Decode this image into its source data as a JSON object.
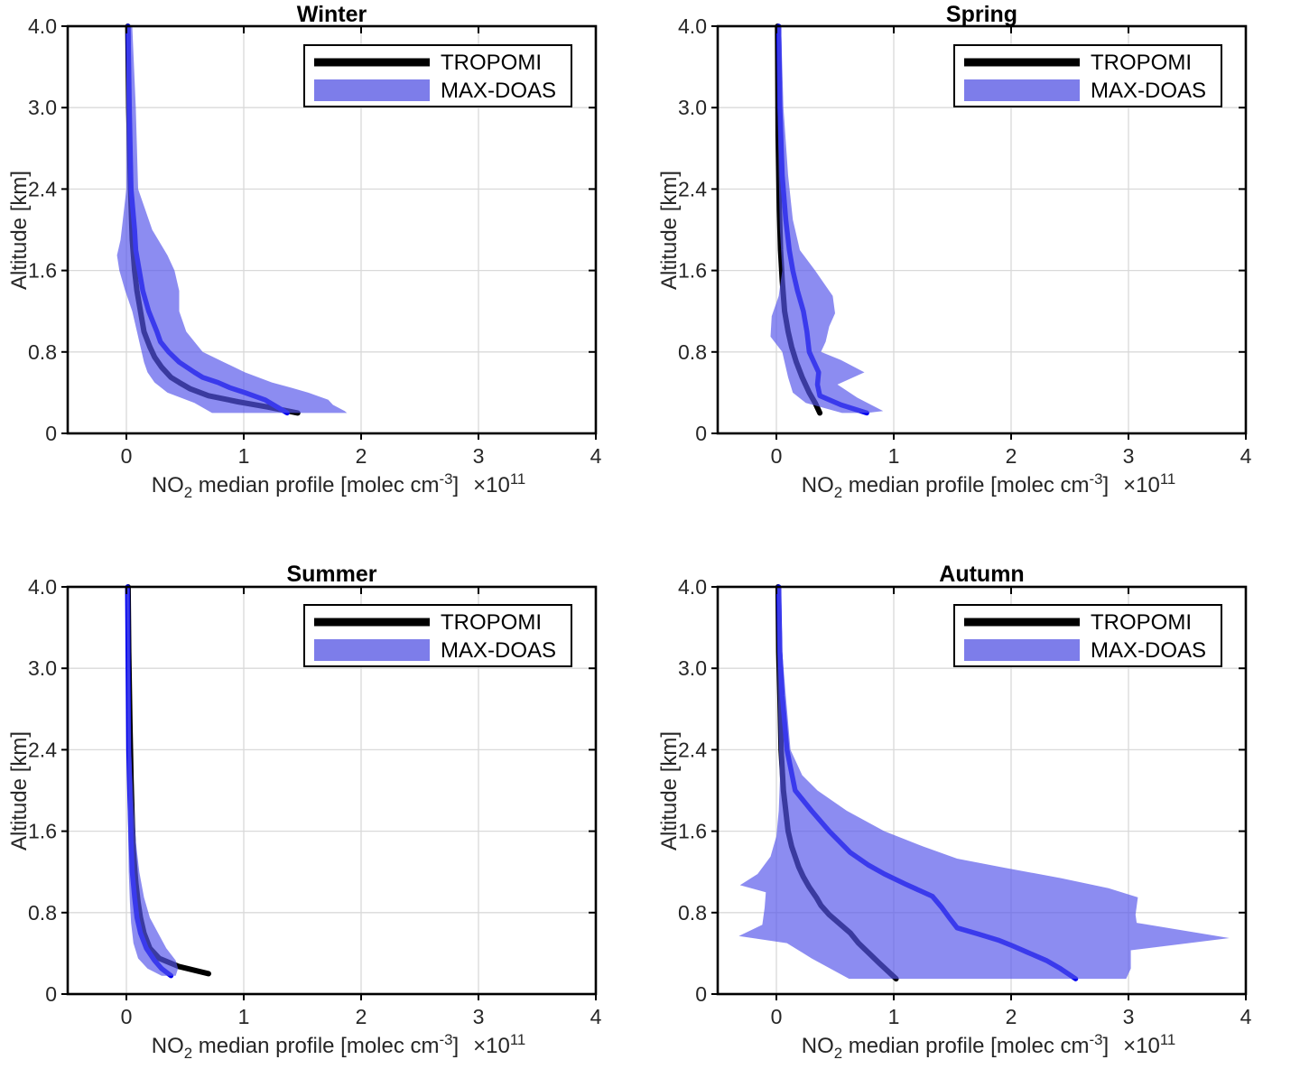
{
  "figure": {
    "background": "#ffffff"
  },
  "colors": {
    "tropomi_line": "#000000",
    "maxdoas_line": "#0000ee",
    "band_fill": "#5555eb",
    "band_opacity": 0.68,
    "legend_band": "#7d7dea",
    "grid": "#d9d9d9",
    "axis": "#000000",
    "tick_label": "#262626"
  },
  "axes": {
    "ylabel": "Altitude [km]",
    "xlabel_plain": "NO2 median profile [molec cm-3] x10^11",
    "xlabel": {
      "p1": "NO",
      "s1": "2",
      "p2": " median profile [molec cm",
      "s2": "-3",
      "p3": "]",
      "p4": "×10",
      "s3": "11"
    },
    "x_tick_values": [
      0,
      1,
      2,
      3,
      4
    ],
    "x_tick_labels": [
      "0",
      "1",
      "2",
      "3",
      "4"
    ],
    "x_range": [
      -0.5,
      4.0
    ],
    "y_tick_values": [
      0,
      0.8,
      1.6,
      2.4,
      3.0,
      4.0
    ],
    "y_tick_labels": [
      "0",
      "0.8",
      "1.6",
      "2.4",
      "3.0",
      "4.0"
    ],
    "grid": "on"
  },
  "legend": {
    "items": [
      {
        "label": "TROPOMI",
        "type": "line"
      },
      {
        "label": "MAX-DOAS",
        "type": "patch"
      }
    ],
    "position": "top-right"
  },
  "chart_data": [
    {
      "type": "line",
      "title": "Winter",
      "xlabel": "NO2 median profile [molec cm-3] x10^11",
      "ylabel": "Altitude [km]",
      "series_units": "values are [NO2 x1e11 molec cm-3, altitude km]",
      "tropomi": [
        [
          1.46,
          0.2
        ],
        [
          1.2,
          0.26
        ],
        [
          0.95,
          0.31
        ],
        [
          0.7,
          0.37
        ],
        [
          0.54,
          0.44
        ],
        [
          0.45,
          0.5
        ],
        [
          0.38,
          0.55
        ],
        [
          0.3,
          0.65
        ],
        [
          0.24,
          0.75
        ],
        [
          0.2,
          0.85
        ],
        [
          0.15,
          1.0
        ],
        [
          0.12,
          1.2
        ],
        [
          0.09,
          1.4
        ],
        [
          0.07,
          1.6
        ],
        [
          0.05,
          1.9
        ],
        [
          0.035,
          2.4
        ],
        [
          0.02,
          3.0
        ],
        [
          0.012,
          4.0
        ]
      ],
      "maxdoas_median": [
        [
          1.37,
          0.2
        ],
        [
          1.18,
          0.33
        ],
        [
          1.01,
          0.4
        ],
        [
          0.88,
          0.45
        ],
        [
          0.78,
          0.5
        ],
        [
          0.65,
          0.55
        ],
        [
          0.58,
          0.6
        ],
        [
          0.45,
          0.7
        ],
        [
          0.36,
          0.8
        ],
        [
          0.29,
          0.9
        ],
        [
          0.26,
          1.0
        ],
        [
          0.19,
          1.2
        ],
        [
          0.14,
          1.4
        ],
        [
          0.11,
          1.6
        ],
        [
          0.08,
          1.8
        ],
        [
          0.07,
          2.0
        ],
        [
          0.04,
          2.4
        ],
        [
          0.025,
          3.0
        ],
        [
          0.015,
          4.0
        ]
      ],
      "maxdoas_band": [
        [
          0.73,
          0.2
        ],
        [
          0.58,
          0.3
        ],
        [
          0.35,
          0.4
        ],
        [
          0.24,
          0.5
        ],
        [
          0.18,
          0.6
        ],
        [
          0.15,
          0.7
        ],
        [
          0.13,
          0.8
        ],
        [
          0.09,
          1.0
        ],
        [
          0.05,
          1.2
        ],
        [
          -0.01,
          1.4
        ],
        [
          -0.06,
          1.6
        ],
        [
          -0.08,
          1.75
        ],
        [
          -0.05,
          1.9
        ],
        [
          -0.03,
          2.1
        ],
        [
          0.0,
          2.4
        ],
        [
          0.0,
          3.0
        ],
        [
          0.0,
          4.0
        ],
        [
          0.05,
          4.0
        ],
        [
          0.08,
          3.0
        ],
        [
          0.1,
          2.4
        ],
        [
          0.22,
          2.0
        ],
        [
          0.35,
          1.75
        ],
        [
          0.41,
          1.6
        ],
        [
          0.45,
          1.4
        ],
        [
          0.45,
          1.2
        ],
        [
          0.51,
          1.0
        ],
        [
          0.65,
          0.8
        ],
        [
          0.83,
          0.7
        ],
        [
          1.01,
          0.6
        ],
        [
          1.24,
          0.5
        ],
        [
          1.4,
          0.45
        ],
        [
          1.55,
          0.4
        ],
        [
          1.72,
          0.33
        ],
        [
          1.76,
          0.28
        ],
        [
          1.86,
          0.22
        ],
        [
          1.88,
          0.2
        ]
      ]
    },
    {
      "type": "line",
      "title": "Spring",
      "xlabel": "NO2 median profile [molec cm-3] x10^11",
      "ylabel": "Altitude [km]",
      "series_units": "values are [NO2 x1e11 molec cm-3, altitude km]",
      "tropomi": [
        [
          0.37,
          0.2
        ],
        [
          0.33,
          0.3
        ],
        [
          0.28,
          0.4
        ],
        [
          0.22,
          0.55
        ],
        [
          0.17,
          0.7
        ],
        [
          0.13,
          0.85
        ],
        [
          0.1,
          1.0
        ],
        [
          0.07,
          1.2
        ],
        [
          0.05,
          1.5
        ],
        [
          0.035,
          1.8
        ],
        [
          0.025,
          2.2
        ],
        [
          0.015,
          2.8
        ],
        [
          0.01,
          4.0
        ]
      ],
      "maxdoas_median": [
        [
          0.77,
          0.2
        ],
        [
          0.55,
          0.28
        ],
        [
          0.37,
          0.37
        ],
        [
          0.35,
          0.48
        ],
        [
          0.36,
          0.6
        ],
        [
          0.32,
          0.7
        ],
        [
          0.28,
          0.8
        ],
        [
          0.26,
          1.0
        ],
        [
          0.23,
          1.2
        ],
        [
          0.18,
          1.4
        ],
        [
          0.14,
          1.6
        ],
        [
          0.11,
          1.8
        ],
        [
          0.08,
          2.1
        ],
        [
          0.05,
          2.5
        ],
        [
          0.03,
          3.0
        ],
        [
          0.02,
          4.0
        ]
      ],
      "maxdoas_band": [
        [
          0.56,
          0.2
        ],
        [
          0.25,
          0.3
        ],
        [
          0.14,
          0.4
        ],
        [
          0.1,
          0.55
        ],
        [
          0.07,
          0.7
        ],
        [
          0.05,
          0.8
        ],
        [
          -0.05,
          0.95
        ],
        [
          -0.04,
          1.15
        ],
        [
          0.02,
          1.35
        ],
        [
          0.05,
          1.6
        ],
        [
          0.03,
          2.0
        ],
        [
          0.02,
          2.5
        ],
        [
          0.01,
          3.0
        ],
        [
          0.005,
          4.0
        ],
        [
          0.04,
          4.0
        ],
        [
          0.06,
          3.0
        ],
        [
          0.1,
          2.5
        ],
        [
          0.14,
          2.1
        ],
        [
          0.2,
          1.8
        ],
        [
          0.33,
          1.6
        ],
        [
          0.42,
          1.45
        ],
        [
          0.48,
          1.35
        ],
        [
          0.5,
          1.18
        ],
        [
          0.45,
          1.05
        ],
        [
          0.42,
          0.9
        ],
        [
          0.38,
          0.8
        ],
        [
          0.55,
          0.72
        ],
        [
          0.75,
          0.6
        ],
        [
          0.52,
          0.48
        ],
        [
          0.69,
          0.35
        ],
        [
          0.91,
          0.22
        ],
        [
          0.77,
          0.2
        ]
      ]
    },
    {
      "type": "line",
      "title": "Summer",
      "xlabel": "NO2 median profile [molec cm-3] x10^11",
      "ylabel": "Altitude [km]",
      "series_units": "values are [NO2 x1e11 molec cm-3, altitude km]",
      "tropomi": [
        [
          0.7,
          0.2
        ],
        [
          0.45,
          0.27
        ],
        [
          0.28,
          0.35
        ],
        [
          0.2,
          0.45
        ],
        [
          0.15,
          0.6
        ],
        [
          0.12,
          0.75
        ],
        [
          0.1,
          0.9
        ],
        [
          0.08,
          1.1
        ],
        [
          0.06,
          1.4
        ],
        [
          0.05,
          1.7
        ],
        [
          0.04,
          2.1
        ],
        [
          0.03,
          2.6
        ],
        [
          0.02,
          3.2
        ],
        [
          0.015,
          4.0
        ]
      ],
      "maxdoas_median": [
        [
          0.38,
          0.18
        ],
        [
          0.3,
          0.25
        ],
        [
          0.24,
          0.33
        ],
        [
          0.17,
          0.45
        ],
        [
          0.12,
          0.6
        ],
        [
          0.09,
          0.75
        ],
        [
          0.07,
          0.95
        ],
        [
          0.05,
          1.2
        ],
        [
          0.04,
          1.5
        ],
        [
          0.03,
          1.9
        ],
        [
          0.02,
          2.4
        ],
        [
          0.015,
          3.0
        ],
        [
          0.01,
          4.0
        ]
      ],
      "maxdoas_band": [
        [
          0.3,
          0.18
        ],
        [
          0.18,
          0.25
        ],
        [
          0.1,
          0.35
        ],
        [
          0.06,
          0.5
        ],
        [
          0.04,
          0.7
        ],
        [
          0.03,
          0.9
        ],
        [
          0.02,
          1.2
        ],
        [
          0.015,
          1.6
        ],
        [
          0.01,
          2.2
        ],
        [
          0.005,
          3.0
        ],
        [
          0.0,
          4.0
        ],
        [
          0.025,
          4.0
        ],
        [
          0.03,
          3.0
        ],
        [
          0.04,
          2.4
        ],
        [
          0.06,
          1.9
        ],
        [
          0.08,
          1.5
        ],
        [
          0.11,
          1.2
        ],
        [
          0.15,
          0.95
        ],
        [
          0.2,
          0.75
        ],
        [
          0.27,
          0.6
        ],
        [
          0.34,
          0.45
        ],
        [
          0.42,
          0.33
        ],
        [
          0.44,
          0.25
        ],
        [
          0.42,
          0.18
        ]
      ]
    },
    {
      "type": "line",
      "title": "Autumn",
      "xlabel": "NO2 median profile [molec cm-3] x10^11",
      "ylabel": "Altitude [km]",
      "series_units": "values are [NO2 x1e11 molec cm-3, altitude km]",
      "tropomi": [
        [
          1.02,
          0.15
        ],
        [
          0.88,
          0.3
        ],
        [
          0.79,
          0.4
        ],
        [
          0.7,
          0.5
        ],
        [
          0.63,
          0.6
        ],
        [
          0.53,
          0.7
        ],
        [
          0.45,
          0.78
        ],
        [
          0.38,
          0.87
        ],
        [
          0.34,
          0.95
        ],
        [
          0.28,
          1.05
        ],
        [
          0.23,
          1.15
        ],
        [
          0.19,
          1.25
        ],
        [
          0.16,
          1.35
        ],
        [
          0.13,
          1.45
        ],
        [
          0.1,
          1.6
        ],
        [
          0.08,
          1.8
        ],
        [
          0.06,
          2.0
        ],
        [
          0.04,
          2.4
        ],
        [
          0.03,
          2.8
        ],
        [
          0.02,
          3.2
        ],
        [
          0.015,
          4.0
        ]
      ],
      "maxdoas_median": [
        [
          2.55,
          0.15
        ],
        [
          2.42,
          0.25
        ],
        [
          2.3,
          0.33
        ],
        [
          2.14,
          0.41
        ],
        [
          2.0,
          0.48
        ],
        [
          1.89,
          0.53
        ],
        [
          1.72,
          0.59
        ],
        [
          1.54,
          0.65
        ],
        [
          1.48,
          0.74
        ],
        [
          1.41,
          0.85
        ],
        [
          1.33,
          0.96
        ],
        [
          1.1,
          1.08
        ],
        [
          0.92,
          1.18
        ],
        [
          0.78,
          1.27
        ],
        [
          0.63,
          1.39
        ],
        [
          0.45,
          1.6
        ],
        [
          0.3,
          1.8
        ],
        [
          0.16,
          2.0
        ],
        [
          0.09,
          2.4
        ],
        [
          0.05,
          2.8
        ],
        [
          0.03,
          3.2
        ],
        [
          0.02,
          4.0
        ]
      ],
      "maxdoas_band": [
        [
          0.62,
          0.15
        ],
        [
          0.3,
          0.35
        ],
        [
          0.09,
          0.5
        ],
        [
          -0.32,
          0.57
        ],
        [
          -0.12,
          0.68
        ],
        [
          -0.1,
          0.85
        ],
        [
          -0.09,
          1.0
        ],
        [
          -0.31,
          1.07
        ],
        [
          -0.16,
          1.18
        ],
        [
          -0.05,
          1.35
        ],
        [
          0.0,
          1.55
        ],
        [
          0.02,
          1.8
        ],
        [
          0.03,
          2.1
        ],
        [
          0.02,
          2.5
        ],
        [
          0.01,
          3.0
        ],
        [
          0.005,
          4.0
        ],
        [
          0.04,
          4.0
        ],
        [
          0.05,
          3.2
        ],
        [
          0.08,
          2.8
        ],
        [
          0.12,
          2.4
        ],
        [
          0.22,
          2.15
        ],
        [
          0.35,
          2.0
        ],
        [
          0.6,
          1.8
        ],
        [
          0.92,
          1.6
        ],
        [
          1.25,
          1.45
        ],
        [
          1.54,
          1.33
        ],
        [
          1.95,
          1.24
        ],
        [
          2.42,
          1.14
        ],
        [
          2.83,
          1.04
        ],
        [
          3.08,
          0.95
        ],
        [
          3.06,
          0.78
        ],
        [
          3.07,
          0.7
        ],
        [
          3.86,
          0.55
        ],
        [
          3.02,
          0.43
        ],
        [
          3.02,
          0.25
        ],
        [
          2.98,
          0.15
        ]
      ]
    }
  ]
}
